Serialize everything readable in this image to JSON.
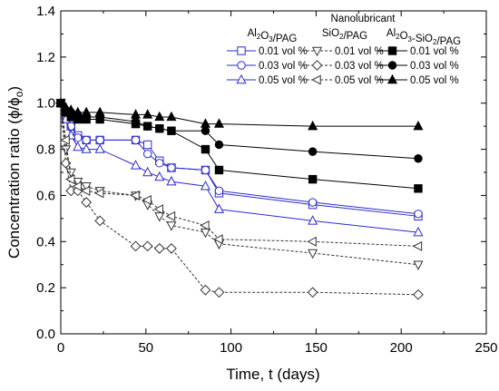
{
  "chart_data": {
    "type": "line",
    "xlabel": "Time, t (days)",
    "ylabel": "Concentration ratio (ϕ/ϕ",
    "ylabel_sub": "o",
    "ylabel_close": ")",
    "xlim": [
      0,
      250
    ],
    "ylim": [
      0.0,
      1.4
    ],
    "x_ticks": [
      0,
      50,
      100,
      150,
      200,
      250
    ],
    "y_ticks": [
      0.0,
      0.2,
      0.4,
      0.6,
      0.8,
      1.0,
      1.2,
      1.4
    ],
    "grid": false,
    "legend": {
      "title": "Nanolubricant",
      "placement": "top-right",
      "group_headers": [
        {
          "base": "Al",
          "sub1": "2",
          "mid": "O",
          "sub2": "3",
          "tail": "/PAG"
        },
        {
          "base": "SiO",
          "sub1": "2",
          "mid": "",
          "sub2": "",
          "tail": "/PAG"
        },
        {
          "base": "Al",
          "sub1": "2",
          "mid": "O",
          "sub2": "3",
          "tail": "-SiO",
          "sub3": "2",
          "tail2": "/PAG"
        }
      ]
    },
    "series": [
      {
        "name": "0.01 vol %",
        "group": 0,
        "color": "#2b2bcc",
        "marker": "square",
        "filled": false,
        "dash": "solid",
        "x": [
          0,
          3,
          6,
          10,
          15,
          23,
          44,
          51,
          58,
          65,
          85,
          93,
          148,
          210
        ],
        "y": [
          1.0,
          0.94,
          0.9,
          0.86,
          0.84,
          0.84,
          0.84,
          0.82,
          0.75,
          0.72,
          0.71,
          0.61,
          0.56,
          0.51
        ]
      },
      {
        "name": "0.03 vol %",
        "group": 0,
        "color": "#2b2bcc",
        "marker": "circle",
        "filled": false,
        "dash": "solid",
        "x": [
          0,
          3,
          6,
          10,
          15,
          23,
          44,
          51,
          58,
          65,
          85,
          93,
          148,
          210
        ],
        "y": [
          1.0,
          0.94,
          0.9,
          0.85,
          0.84,
          0.84,
          0.84,
          0.78,
          0.74,
          0.72,
          0.71,
          0.62,
          0.57,
          0.52
        ]
      },
      {
        "name": "0.05 vol %",
        "group": 0,
        "color": "#2b2bcc",
        "marker": "triangle-up",
        "filled": false,
        "dash": "solid",
        "x": [
          0,
          3,
          6,
          10,
          15,
          23,
          44,
          51,
          58,
          65,
          85,
          93,
          148,
          210
        ],
        "y": [
          1.0,
          0.93,
          0.86,
          0.81,
          0.8,
          0.8,
          0.73,
          0.7,
          0.68,
          0.66,
          0.64,
          0.54,
          0.49,
          0.44
        ]
      },
      {
        "name": "0.01 vol %",
        "group": 1,
        "color": "#333333",
        "marker": "triangle-down",
        "filled": false,
        "dash": "3,2",
        "x": [
          0,
          3,
          6,
          10,
          15,
          23,
          44,
          51,
          58,
          65,
          85,
          93,
          148,
          210
        ],
        "y": [
          1.0,
          0.8,
          0.7,
          0.66,
          0.64,
          0.62,
          0.6,
          0.56,
          0.51,
          0.47,
          0.44,
          0.39,
          0.35,
          0.3
        ]
      },
      {
        "name": "0.03 vol %",
        "group": 1,
        "color": "#333333",
        "marker": "diamond",
        "filled": false,
        "dash": "3,2",
        "x": [
          0,
          3,
          6,
          10,
          15,
          23,
          44,
          51,
          58,
          65,
          85,
          93,
          148,
          210
        ],
        "y": [
          1.0,
          0.74,
          0.62,
          0.62,
          0.57,
          0.49,
          0.38,
          0.38,
          0.37,
          0.37,
          0.19,
          0.18,
          0.18,
          0.17
        ]
      },
      {
        "name": "0.05 vol %",
        "group": 1,
        "color": "#333333",
        "marker": "triangle-left",
        "filled": false,
        "dash": "3,2",
        "x": [
          0,
          3,
          6,
          10,
          15,
          23,
          44,
          51,
          58,
          65,
          85,
          93,
          148,
          210
        ],
        "y": [
          1.0,
          0.84,
          0.67,
          0.64,
          0.62,
          0.61,
          0.6,
          0.58,
          0.54,
          0.51,
          0.47,
          0.41,
          0.4,
          0.38
        ]
      },
      {
        "name": "0.01 vol %",
        "group": 2,
        "color": "#000000",
        "marker": "square",
        "filled": true,
        "dash": "solid",
        "x": [
          0,
          3,
          6,
          10,
          15,
          23,
          44,
          51,
          58,
          65,
          85,
          93,
          148,
          210
        ],
        "y": [
          1.0,
          0.96,
          0.94,
          0.93,
          0.93,
          0.93,
          0.91,
          0.9,
          0.89,
          0.88,
          0.8,
          0.71,
          0.67,
          0.63
        ]
      },
      {
        "name": "0.03 vol %",
        "group": 2,
        "color": "#000000",
        "marker": "circle",
        "filled": true,
        "dash": "solid",
        "x": [
          0,
          3,
          6,
          10,
          15,
          23,
          44,
          51,
          58,
          65,
          85,
          93,
          148,
          210
        ],
        "y": [
          1.0,
          0.97,
          0.96,
          0.95,
          0.94,
          0.94,
          0.92,
          0.9,
          0.89,
          0.88,
          0.88,
          0.82,
          0.79,
          0.76
        ]
      },
      {
        "name": "0.05 vol %",
        "group": 2,
        "color": "#000000",
        "marker": "triangle-up",
        "filled": true,
        "dash": "solid",
        "x": [
          0,
          3,
          6,
          10,
          15,
          23,
          44,
          51,
          58,
          65,
          85,
          93,
          148,
          210
        ],
        "y": [
          1.0,
          0.98,
          0.97,
          0.96,
          0.96,
          0.96,
          0.95,
          0.95,
          0.94,
          0.94,
          0.91,
          0.91,
          0.9,
          0.9
        ]
      }
    ]
  }
}
